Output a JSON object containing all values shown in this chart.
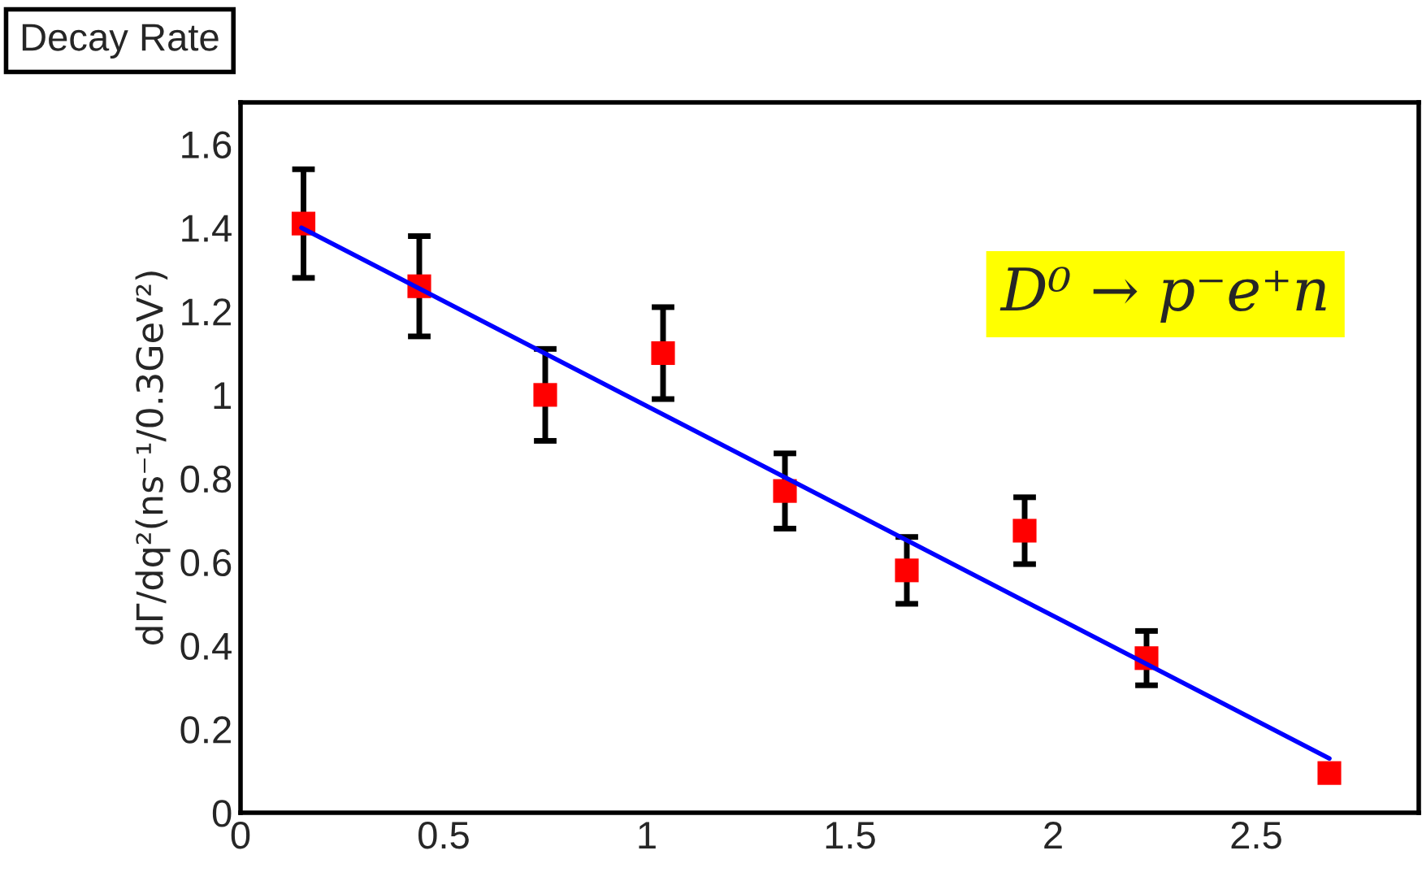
{
  "chart_data": {
    "type": "scatter",
    "title": "Decay Rate",
    "ylabel": "dΓ/dq²(ns⁻¹/0.3GeV²)",
    "annotations": [
      "D⁰ → p⁻e⁺n"
    ],
    "x": [
      0.155,
      0.44,
      0.75,
      1.04,
      1.34,
      1.64,
      1.93,
      2.23,
      2.68
    ],
    "series": [
      {
        "color": "#ff0000",
        "marker": "square",
        "values": [
          1.41,
          1.26,
          1.0,
          1.1,
          0.77,
          0.58,
          0.675,
          0.37,
          0.095
        ],
        "errors": [
          0.13,
          0.12,
          0.11,
          0.11,
          0.09,
          0.08,
          0.08,
          0.065,
          null
        ]
      },
      {
        "type": "line",
        "color": "#0000ff",
        "x": [
          0.15,
          2.68
        ],
        "values": [
          1.4,
          0.13
        ]
      }
    ],
    "xlim": [
      0,
      2.9
    ],
    "xticks": [
      0,
      0.5,
      1,
      1.5,
      2,
      2.5
    ],
    "ylim": [
      0,
      1.7
    ],
    "yticks": [
      0,
      0.2,
      0.4,
      0.6,
      0.8,
      1,
      1.2,
      1.4,
      1.6
    ],
    "grid": false,
    "legend": false
  }
}
